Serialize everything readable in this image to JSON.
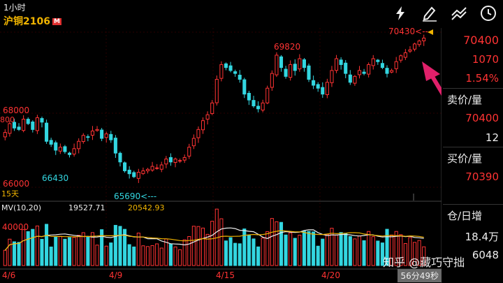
{
  "header": {
    "timeframe": "1小时",
    "symbol": "沪铜2106",
    "badge": "M"
  },
  "toolbar": {
    "icons": [
      "flash-icon",
      "draw-pen-icon",
      "indicator-lines-icon",
      "clock-icon"
    ]
  },
  "chart": {
    "price_labels": [
      "68000",
      "66000"
    ],
    "partial_label": "800",
    "annotations": [
      "69820",
      "66430",
      "65690<---",
      "70430<---"
    ],
    "date_labels": [
      "4/6",
      "4/9",
      "4/15",
      "4/20"
    ],
    "range_label": "15天",
    "volume_header": {
      "title": "MV(10,20)",
      "mv10": "19527.71",
      "mv20": "20542.93"
    },
    "volume_axis_label": "40000",
    "timer": "56分49秒"
  },
  "side_panel": {
    "last_price": "70400",
    "change": "1070",
    "change_pct": "1.54%",
    "ask_label": "卖价/量",
    "ask_price": "70400",
    "ask_qty": "12",
    "bid_label": "买价/量",
    "bid_price": "70390",
    "oi_label": "仓/日增",
    "oi_value": "18.4万",
    "oi_change": "6048"
  },
  "watermark": "知乎 @藏巧守拙",
  "colors": {
    "up": "#ff3333",
    "down": "#33d6e0",
    "accent": "#f0b400",
    "arrow": "#e0206a"
  },
  "chart_data": {
    "type": "candlestick",
    "title": "沪铜2106",
    "xlabel": "",
    "ylabel": "",
    "x_ticks": [
      "4/6",
      "4/9",
      "4/15",
      "4/20"
    ],
    "ylim": [
      65200,
      70600
    ],
    "price_ticks": [
      66000,
      68000,
      70400
    ],
    "closes": [
      67200,
      67500,
      67350,
      67300,
      67650,
      67500,
      67300,
      67700,
      67550,
      66900,
      66800,
      66600,
      66700,
      66550,
      66450,
      66650,
      66900,
      67100,
      67050,
      67250,
      67300,
      67000,
      67150,
      66950,
      66500,
      66200,
      65900,
      65800,
      65700,
      65850,
      65900,
      65950,
      66050,
      66000,
      66100,
      66300,
      66200,
      66300,
      66250,
      66350,
      66700,
      67000,
      67300,
      67600,
      67800,
      68200,
      69000,
      69500,
      69400,
      69300,
      69200,
      69000,
      68500,
      68300,
      68100,
      68000,
      68200,
      68700,
      69200,
      69820,
      69400,
      69100,
      69500,
      69300,
      69700,
      69400,
      69000,
      68800,
      68700,
      68500,
      68900,
      69300,
      69700,
      69500,
      69200,
      68900,
      69100,
      69300,
      69200,
      69500,
      69700,
      69600,
      69400,
      69200,
      69300,
      69600,
      69800,
      69900,
      70000,
      70200,
      70300,
      70400
    ],
    "volume_ylim": [
      0,
      45000
    ],
    "volume_ticks": [
      40000
    ],
    "mv10": 19527.71,
    "mv20": 20542.93
  }
}
